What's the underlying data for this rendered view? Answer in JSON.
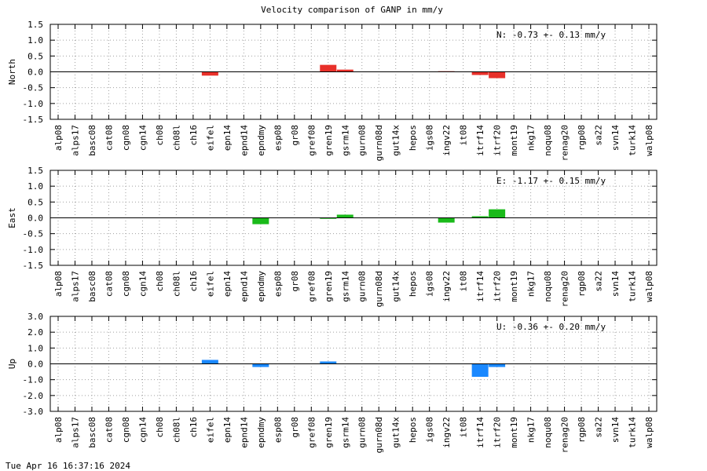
{
  "title": "Velocity comparison of GANP in mm/y",
  "timestamp": "Tue Apr 16 16:37:16 2024",
  "chart_data": [
    {
      "type": "bar",
      "ylabel": "North",
      "annotation": "N:  -0.73 +-  0.13 mm/y",
      "color": "#e8302a",
      "ylim": [
        -1.5,
        1.5
      ],
      "yticks": [
        1.5,
        1.0,
        0.5,
        0.0,
        -0.5,
        -1.0,
        -1.5
      ],
      "ytick_labels": [
        "1.5",
        "1.0",
        "0.5",
        "0.0",
        "-0.5",
        "-1.0",
        "-1.5"
      ],
      "grid": true,
      "categories": [
        "alp08",
        "alps17",
        "basc08",
        "cat08",
        "cgn08",
        "cgn14",
        "ch08",
        "ch08l",
        "ch16",
        "eifel",
        "epn14",
        "epnd14",
        "epndmy",
        "esp08",
        "gr08",
        "gref08",
        "gren19",
        "gsrm14",
        "gurn08",
        "gurn08d",
        "gut14x",
        "hepos",
        "igs08",
        "ingv22",
        "it08",
        "itrf14",
        "itrf20",
        "mont19",
        "nkg17",
        "noqu08",
        "renag20",
        "rgp08",
        "sa22",
        "svn14",
        "turk14",
        "walp08"
      ],
      "values": [
        0,
        0,
        0,
        0,
        0,
        0,
        0,
        0,
        0,
        -0.12,
        0,
        0,
        0,
        0,
        0,
        0,
        0.22,
        0.07,
        0,
        0,
        0,
        0,
        0,
        0.02,
        0,
        -0.1,
        -0.2,
        0,
        0,
        0,
        0,
        0,
        0,
        0,
        0,
        0
      ]
    },
    {
      "type": "bar",
      "ylabel": "East",
      "annotation": "E:  -1.17 +-  0.15 mm/y",
      "color": "#1aba1a",
      "ylim": [
        -1.5,
        1.5
      ],
      "yticks": [
        1.5,
        1.0,
        0.5,
        0.0,
        -0.5,
        -1.0,
        -1.5
      ],
      "ytick_labels": [
        "1.5",
        "1.0",
        "0.5",
        "0.0",
        "-0.5",
        "-1.0",
        "-1.5"
      ],
      "grid": true,
      "categories": [
        "alp08",
        "alps17",
        "basc08",
        "cat08",
        "cgn08",
        "cgn14",
        "ch08",
        "ch08l",
        "ch16",
        "eifel",
        "epn14",
        "epnd14",
        "epndmy",
        "esp08",
        "gr08",
        "gref08",
        "gren19",
        "gsrm14",
        "gurn08",
        "gurn08d",
        "gut14x",
        "hepos",
        "igs08",
        "ingv22",
        "it08",
        "itrf14",
        "itrf20",
        "mont19",
        "nkg17",
        "noqu08",
        "renag20",
        "rgp08",
        "sa22",
        "svn14",
        "turk14",
        "walp08"
      ],
      "values": [
        0,
        0,
        0,
        0,
        0,
        0,
        0,
        0,
        0,
        0,
        0,
        0,
        -0.2,
        0,
        0,
        0,
        -0.03,
        0.1,
        0,
        0,
        0,
        0,
        0,
        -0.15,
        0,
        0.05,
        0.27,
        0,
        0,
        0,
        0,
        0,
        0,
        0,
        0,
        0
      ]
    },
    {
      "type": "bar",
      "ylabel": "Up",
      "annotation": "U:  -0.36 +-  0.20 mm/y",
      "color": "#1a88ff",
      "ylim": [
        -3.0,
        3.0
      ],
      "yticks": [
        3.0,
        2.0,
        1.0,
        0.0,
        -1.0,
        -2.0,
        -3.0
      ],
      "ytick_labels": [
        "3.0",
        "2.0",
        "1.0",
        "0.0",
        "-1.0",
        "-2.0",
        "-3.0"
      ],
      "grid": true,
      "categories": [
        "alp08",
        "alps17",
        "basc08",
        "cat08",
        "cgn08",
        "cgn14",
        "ch08",
        "ch08l",
        "ch16",
        "eifel",
        "epn14",
        "epnd14",
        "epndmy",
        "esp08",
        "gr08",
        "gref08",
        "gren19",
        "gsrm14",
        "gurn08",
        "gurn08d",
        "gut14x",
        "hepos",
        "igs08",
        "ingv22",
        "it08",
        "itrf14",
        "itrf20",
        "mont19",
        "nkg17",
        "noqu08",
        "renag20",
        "rgp08",
        "sa22",
        "svn14",
        "turk14",
        "walp08"
      ],
      "values": [
        0,
        0,
        0,
        0,
        0,
        0,
        0,
        0,
        0,
        0.25,
        0,
        0,
        -0.2,
        0,
        0,
        0,
        0.15,
        0,
        0,
        0,
        0,
        0,
        0,
        0,
        0,
        -0.82,
        -0.2,
        0,
        0,
        0,
        0,
        0,
        0,
        0,
        0,
        0
      ]
    }
  ]
}
